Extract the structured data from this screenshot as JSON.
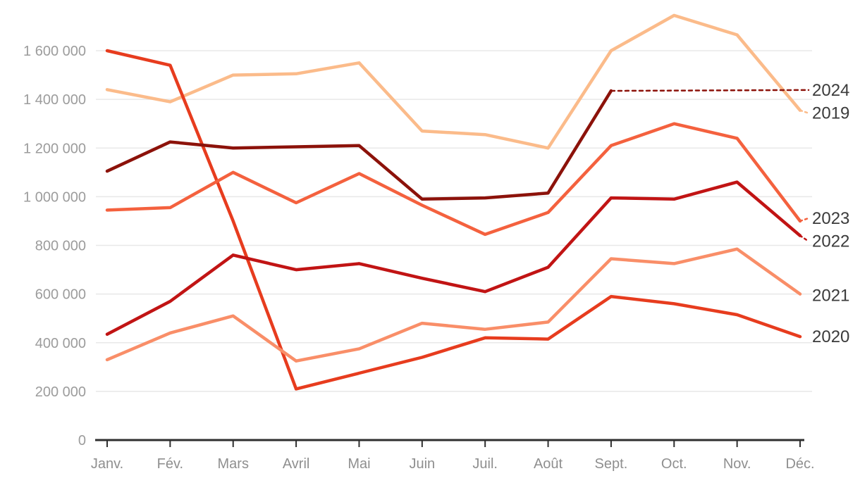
{
  "chart_data": {
    "type": "line",
    "title": "",
    "categories": [
      "Janv.",
      "Fév.",
      "Mars",
      "Avril",
      "Mai",
      "Juin",
      "Juil.",
      "Août",
      "Sept.",
      "Oct.",
      "Nov.",
      "Déc."
    ],
    "y_axis": {
      "min": 0,
      "max": 1600000,
      "gridline_step": 200000,
      "ticks": [
        {
          "value": 0,
          "label": "0"
        },
        {
          "value": 200000,
          "label": "200 000"
        },
        {
          "value": 400000,
          "label": "400 000"
        },
        {
          "value": 600000,
          "label": "600 000"
        },
        {
          "value": 800000,
          "label": "800 000"
        },
        {
          "value": 1000000,
          "label": "1 000 000"
        },
        {
          "value": 1200000,
          "label": "1 200 000"
        },
        {
          "value": 1400000,
          "label": "1 400 000"
        },
        {
          "value": 1600000,
          "label": "1 600 000"
        }
      ]
    },
    "grid": "horizontal-only",
    "legend_position": "end-of-line-labels-right",
    "series": [
      {
        "name": "2019",
        "color": "#fbbb8a",
        "values": [
          1440000,
          1390000,
          1500000,
          1505000,
          1550000,
          1270000,
          1255000,
          1200000,
          1600000,
          1745000,
          1665000,
          1355000
        ],
        "dotted_leader": true,
        "label_dy": 4
      },
      {
        "name": "2020",
        "color": "#e73c1e",
        "values": [
          1600000,
          1540000,
          900000,
          210000,
          275000,
          340000,
          420000,
          415000,
          590000,
          560000,
          515000,
          425000
        ],
        "dotted_leader": false,
        "label_dy": 0
      },
      {
        "name": "2021",
        "color": "#f98e68",
        "values": [
          330000,
          440000,
          510000,
          325000,
          375000,
          480000,
          455000,
          485000,
          745000,
          725000,
          785000,
          600000
        ],
        "dotted_leader": false,
        "label_dy": 2
      },
      {
        "name": "2022",
        "color": "#c11414",
        "values": [
          435000,
          570000,
          760000,
          700000,
          725000,
          665000,
          610000,
          710000,
          995000,
          990000,
          1060000,
          840000
        ],
        "dotted_leader": true,
        "label_dy": 8
      },
      {
        "name": "2023",
        "color": "#f4613e",
        "values": [
          945000,
          955000,
          1100000,
          975000,
          1095000,
          965000,
          845000,
          935000,
          1210000,
          1300000,
          1240000,
          900000
        ],
        "dotted_leader": true,
        "label_dy": -4
      },
      {
        "name": "2024",
        "color": "#8c120a",
        "values": [
          1105000,
          1225000,
          1200000,
          1205000,
          1210000,
          990000,
          995000,
          1015000,
          1435000,
          null,
          null,
          1450000
        ],
        "dashed_from_index": 8,
        "dotted_leader": false,
        "label_dy": 4
      }
    ],
    "style": {
      "axis_color": "#2f2f2f",
      "gridline_color": "#e8e8e8",
      "y_tick_label_color": "#9c9c9c",
      "x_tick_label_color": "#8f8f8f",
      "series_label_color": "#3b3b3b",
      "background": "#ffffff"
    }
  }
}
